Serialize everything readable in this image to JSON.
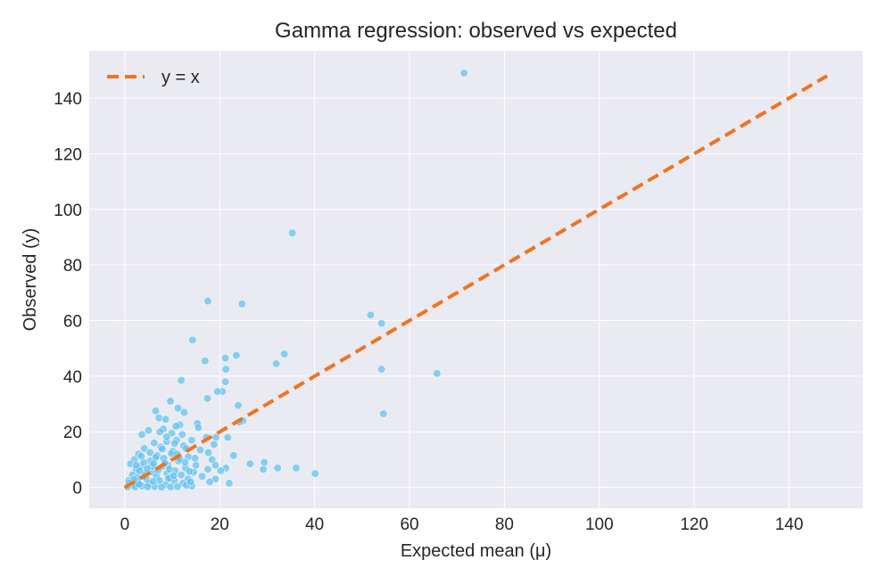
{
  "chart_data": {
    "type": "scatter",
    "title": "Gamma regression: observed vs expected",
    "xlabel": "Expected mean (μ)",
    "ylabel": "Observed (y)",
    "xlim": [
      -7.5,
      155.5
    ],
    "ylim": [
      -7.5,
      157
    ],
    "xticks": [
      0,
      20,
      40,
      60,
      80,
      100,
      120,
      140
    ],
    "yticks": [
      0,
      20,
      40,
      60,
      80,
      100,
      120,
      140
    ],
    "grid": true,
    "legend": {
      "position": "top-left",
      "entries": [
        "y = x"
      ]
    },
    "colors": {
      "points": "#5bc0f0",
      "line": "#f07320",
      "panel": "#eaeaf2",
      "grid": "#ffffff"
    },
    "reference_line": {
      "name": "y = x",
      "x": [
        0,
        148
      ],
      "y": [
        0,
        148
      ]
    },
    "points": [
      [
        71.5,
        149
      ],
      [
        35.3,
        91.5
      ],
      [
        17.5,
        67
      ],
      [
        24.7,
        66
      ],
      [
        51.8,
        62
      ],
      [
        54.1,
        59
      ],
      [
        14.3,
        53
      ],
      [
        33.6,
        48
      ],
      [
        23.5,
        47.5
      ],
      [
        21.2,
        46.5
      ],
      [
        16.9,
        45.5
      ],
      [
        31.9,
        44.5
      ],
      [
        54.1,
        42.5
      ],
      [
        21.3,
        42.5
      ],
      [
        65.8,
        41
      ],
      [
        11.9,
        38.5
      ],
      [
        21.2,
        38
      ],
      [
        20.6,
        34.5
      ],
      [
        19.5,
        34.5
      ],
      [
        17.4,
        32
      ],
      [
        9.6,
        31
      ],
      [
        23.9,
        29.5
      ],
      [
        11.2,
        28.5
      ],
      [
        6.5,
        27.5
      ],
      [
        12.5,
        27
      ],
      [
        54.5,
        26.5
      ],
      [
        7.2,
        25
      ],
      [
        8.6,
        24.5
      ],
      [
        24.9,
        24
      ],
      [
        24.1,
        23.5
      ],
      [
        15.3,
        23
      ],
      [
        11.6,
        22.5
      ],
      [
        10.8,
        22
      ],
      [
        15.5,
        21.5
      ],
      [
        8.1,
        21
      ],
      [
        7.4,
        20
      ],
      [
        5.0,
        20.5
      ],
      [
        9.9,
        19.5
      ],
      [
        3.6,
        19
      ],
      [
        12.1,
        19
      ],
      [
        19.2,
        18
      ],
      [
        21.7,
        18
      ],
      [
        17.2,
        18
      ],
      [
        14.1,
        17
      ],
      [
        10.9,
        17
      ],
      [
        8.8,
        16.5
      ],
      [
        6.2,
        16
      ],
      [
        18.8,
        15.5
      ],
      [
        12.4,
        15
      ],
      [
        7.6,
        14.5
      ],
      [
        4.1,
        14
      ],
      [
        15.9,
        13.5
      ],
      [
        10.1,
        13
      ],
      [
        17.6,
        12.5
      ],
      [
        2.9,
        12
      ],
      [
        6.8,
        11.5
      ],
      [
        22.9,
        11.5
      ],
      [
        13.4,
        11
      ],
      [
        8.2,
        10.5
      ],
      [
        2.0,
        10
      ],
      [
        18.4,
        10
      ],
      [
        5.4,
        9.5
      ],
      [
        11.3,
        9.5
      ],
      [
        29.4,
        9
      ],
      [
        1.2,
        8.5
      ],
      [
        26.4,
        8.5
      ],
      [
        15.0,
        8
      ],
      [
        9.1,
        8
      ],
      [
        19.1,
        8
      ],
      [
        3.3,
        7.5
      ],
      [
        7.9,
        7.5
      ],
      [
        32.2,
        7
      ],
      [
        36.1,
        7
      ],
      [
        12.8,
        7
      ],
      [
        21.3,
        7
      ],
      [
        29.2,
        6.5
      ],
      [
        17.5,
        6.5
      ],
      [
        2.4,
        6.5
      ],
      [
        10.6,
        6
      ],
      [
        20.2,
        6
      ],
      [
        5.9,
        5.5
      ],
      [
        14.5,
        5.5
      ],
      [
        40.1,
        5
      ],
      [
        8.9,
        5
      ],
      [
        1.6,
        4.5
      ],
      [
        11.9,
        4.5
      ],
      [
        6.7,
        4
      ],
      [
        3.9,
        4
      ],
      [
        16.3,
        4
      ],
      [
        9.5,
        3.5
      ],
      [
        4.6,
        3
      ],
      [
        13.3,
        3
      ],
      [
        19.1,
        3
      ],
      [
        0.8,
        2.5
      ],
      [
        7.3,
        2.5
      ],
      [
        10.4,
        2.5
      ],
      [
        17.9,
        2
      ],
      [
        2.8,
        2
      ],
      [
        5.1,
        1.5
      ],
      [
        22.0,
        1.5
      ],
      [
        12.2,
        1.5
      ],
      [
        8.6,
        1
      ],
      [
        1.5,
        1
      ],
      [
        14.1,
        0.5
      ],
      [
        3.7,
        0.5
      ],
      [
        0.6,
        0.2
      ],
      [
        6.3,
        0.3
      ],
      [
        9.7,
        0.2
      ],
      [
        2.2,
        0.2
      ],
      [
        11.1,
        0.3
      ],
      [
        4.8,
        0.2
      ],
      [
        7.7,
        0.1
      ],
      [
        13.0,
        0.8
      ],
      [
        3.0,
        1.2
      ],
      [
        6.0,
        2.2
      ],
      [
        9.2,
        3.2
      ],
      [
        4.3,
        5.2
      ],
      [
        7.0,
        6.2
      ],
      [
        2.6,
        3.6
      ],
      [
        5.7,
        7.6
      ],
      [
        8.4,
        8.8
      ],
      [
        11.6,
        10.2
      ],
      [
        4.0,
        9.0
      ],
      [
        6.5,
        10.8
      ],
      [
        9.8,
        12.2
      ],
      [
        12.9,
        14.0
      ],
      [
        3.1,
        6.0
      ],
      [
        10.3,
        4.2
      ],
      [
        13.6,
        5.8
      ],
      [
        1.9,
        2.8
      ],
      [
        0.9,
        1.6
      ],
      [
        5.3,
        12.6
      ],
      [
        7.9,
        13.8
      ],
      [
        8.8,
        18.2
      ],
      [
        10.5,
        15.8
      ],
      [
        12.7,
        9.0
      ],
      [
        14.8,
        10.5
      ],
      [
        6.1,
        8.6
      ],
      [
        3.5,
        11.2
      ],
      [
        2.4,
        8.0
      ],
      [
        4.7,
        6.8
      ],
      [
        9.4,
        6.6
      ],
      [
        11.0,
        12.0
      ],
      [
        13.9,
        2.0
      ]
    ]
  }
}
